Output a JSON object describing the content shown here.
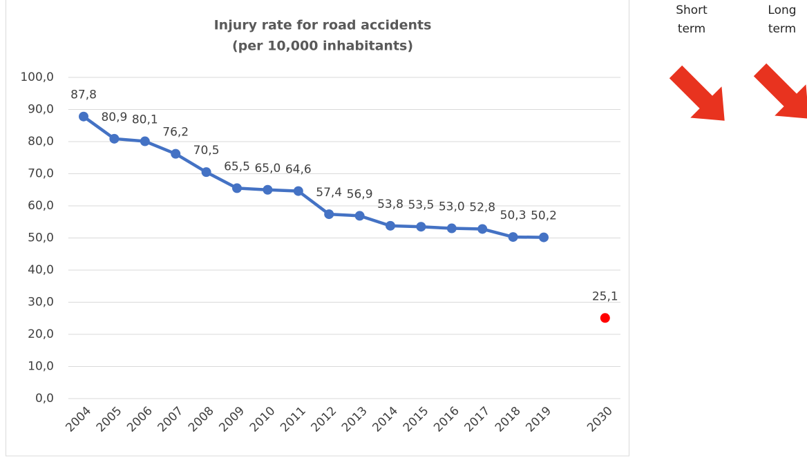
{
  "chart_data": {
    "type": "line",
    "title": [
      "Injury rate for road accidents",
      "(per 10,000 inhabitants)"
    ],
    "categories": [
      "2004",
      "2005",
      "2006",
      "2007",
      "2008",
      "2009",
      "2010",
      "2011",
      "2012",
      "2013",
      "2014",
      "2015",
      "2016",
      "2017",
      "2018",
      "2019",
      null,
      "2030"
    ],
    "series": [
      {
        "color": "#4472c4",
        "values": [
          87.8,
          80.9,
          80.1,
          76.2,
          70.5,
          65.5,
          65.0,
          64.6,
          57.4,
          56.9,
          53.8,
          53.5,
          53.0,
          52.8,
          50.3,
          50.2,
          null,
          null
        ],
        "value_labels": [
          "87,8",
          "80,9",
          "80,1",
          "76,2",
          "70,5",
          "65,5",
          "65,0",
          "64,6",
          "57,4",
          "56,9",
          "53,8",
          "53,5",
          "53,0",
          "52,8",
          "50,3",
          "50,2",
          null,
          null
        ]
      },
      {
        "color": "#ff0000",
        "values": [
          null,
          null,
          null,
          null,
          null,
          null,
          null,
          null,
          null,
          null,
          null,
          null,
          null,
          null,
          null,
          null,
          null,
          25.1
        ],
        "value_labels": [
          null,
          null,
          null,
          null,
          null,
          null,
          null,
          null,
          null,
          null,
          null,
          null,
          null,
          null,
          null,
          null,
          null,
          "25,1"
        ]
      }
    ],
    "ylim": [
      0,
      100
    ],
    "yticks": [
      {
        "value": 0,
        "label": "0,0"
      },
      {
        "value": 10,
        "label": "10,0"
      },
      {
        "value": 20,
        "label": "20,0"
      },
      {
        "value": 30,
        "label": "30,0"
      },
      {
        "value": 40,
        "label": "40,0"
      },
      {
        "value": 50,
        "label": "50,0"
      },
      {
        "value": 60,
        "label": "60,0"
      },
      {
        "value": 70,
        "label": "70,0"
      },
      {
        "value": 80,
        "label": "80,0"
      },
      {
        "value": 90,
        "label": "90,0"
      },
      {
        "value": 100,
        "label": "100,0"
      }
    ],
    "grid": true,
    "annotations": [
      [
        "Short",
        "term"
      ],
      [
        "Long",
        "term"
      ]
    ]
  }
}
